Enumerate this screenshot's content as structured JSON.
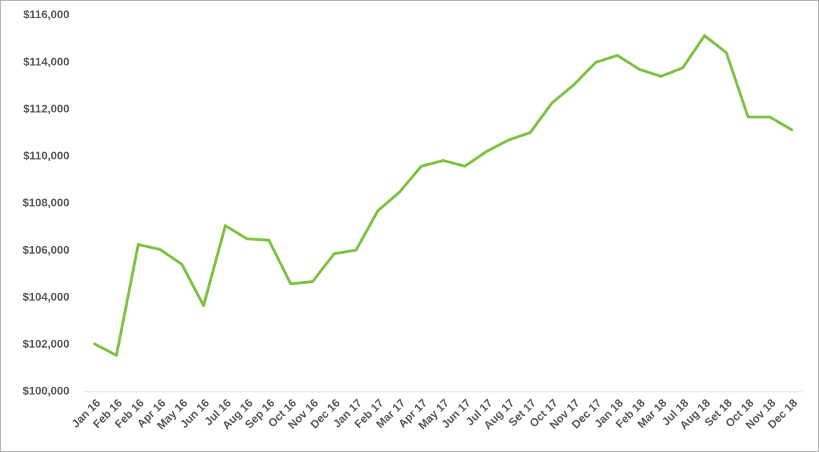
{
  "chart_data": {
    "type": "line",
    "categories": [
      "Jan 16",
      "Feb 16",
      "Feb 16",
      "Apr 16",
      "May 16",
      "Jun 16",
      "Jul 16",
      "Aug 16",
      "Sep 16",
      "Oct 16",
      "Nov 16",
      "Dec 16",
      "Jan 17",
      "Feb 17",
      "Mar 17",
      "Apr 17",
      "May 17",
      "Jun 17",
      "Jul 17",
      "Aug 17",
      "Set 17",
      "Oct 17",
      "Nov 17",
      "Dec 17",
      "Jan 18",
      "Feb 18",
      "Mar 18",
      "Jul 18",
      "Aug 18",
      "Set 18",
      "Oct 18",
      "Nov 18",
      "Dec 18"
    ],
    "values": [
      102030,
      101550,
      106260,
      106050,
      105420,
      103660,
      107060,
      106500,
      106440,
      104590,
      104680,
      105870,
      106020,
      107690,
      108490,
      109590,
      109830,
      109590,
      110220,
      110700,
      111020,
      112280,
      113050,
      114000,
      114300,
      113710,
      113410,
      113770,
      115140,
      114420,
      111680,
      111680,
      111140
    ],
    "color": "#7dc242",
    "ylim": [
      100000,
      116000
    ],
    "yticks": [
      {
        "value": 100000,
        "label": "$100,000"
      },
      {
        "value": 102000,
        "label": "$102,000"
      },
      {
        "value": 104000,
        "label": "$104,000"
      },
      {
        "value": 106000,
        "label": "$106,000"
      },
      {
        "value": 108000,
        "label": "$108,000"
      },
      {
        "value": 110000,
        "label": "$110,000"
      },
      {
        "value": 112000,
        "label": "$112,000"
      },
      {
        "value": 114000,
        "label": "$114,000"
      },
      {
        "value": 116000,
        "label": "$116,000"
      }
    ],
    "grid": false
  }
}
